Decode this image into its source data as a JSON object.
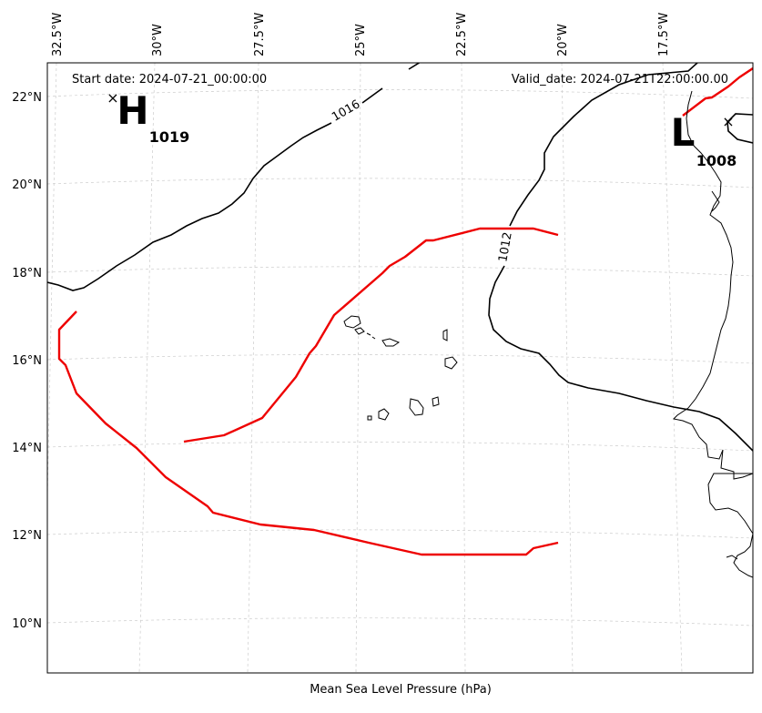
{
  "header": {
    "start_date": "Start date: 2024-07-21_00:00:00",
    "valid_date": "Valid_date: 2024-07-21T22:00:00.00"
  },
  "xlabel": "Mean Sea Level Pressure (hPa)",
  "lon_ticks": [
    "32.5°W",
    "30°W",
    "27.5°W",
    "25°W",
    "22.5°W",
    "20°W",
    "17.5°W"
  ],
  "lat_ticks": [
    "22°N",
    "20°N",
    "18°N",
    "16°N",
    "14°N",
    "12°N",
    "10°N"
  ],
  "pressure_centers": [
    {
      "type": "H",
      "value": "1019"
    },
    {
      "type": "L",
      "value": "1008"
    }
  ],
  "isobar_labels": [
    "1016",
    "1012"
  ],
  "colors": {
    "isobar": "#000000",
    "track": "#ee0000",
    "grid": "#cccccc"
  }
}
